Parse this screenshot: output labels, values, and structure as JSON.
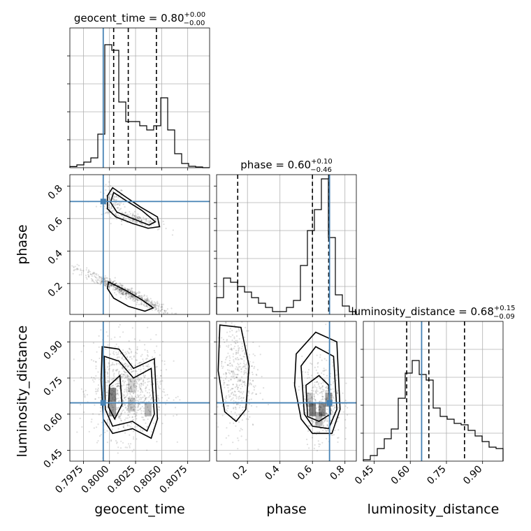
{
  "colors": {
    "truth": "#4682b4",
    "grid": "#b0b0b0",
    "line": "#000000"
  },
  "chart_data": {
    "type": "corner",
    "parameters": [
      "geocent_time",
      "phase",
      "luminosity_distance"
    ],
    "axis_labels": [
      "geocent_time",
      "phase",
      "luminosity_distance"
    ],
    "titles": [
      {
        "prefix": "geocent_time = 0.80",
        "sup": "+0.00",
        "sub": "−0.00"
      },
      {
        "prefix": "phase = 0.60",
        "sup": "+0.10",
        "sub": "−0.46"
      },
      {
        "prefix": "luminosity_distance = 0.68",
        "sup": "+0.15",
        "sub": "−0.09"
      }
    ],
    "ranges": [
      [
        0.7962,
        0.8096
      ],
      [
        0.01,
        0.87
      ],
      [
        0.405,
        0.985
      ]
    ],
    "ticks": [
      {
        "values": [
          0.7975,
          0.8,
          0.8025,
          0.805,
          0.8075
        ],
        "labels": [
          "0.7975",
          "0.8000",
          "0.8025",
          "0.8050",
          "0.8075"
        ]
      },
      {
        "values": [
          0.2,
          0.4,
          0.6,
          0.8
        ],
        "labels": [
          "0.2",
          "0.4",
          "0.6",
          "0.8"
        ]
      },
      {
        "values": [
          0.45,
          0.6,
          0.75,
          0.9
        ],
        "labels": [
          "0.45",
          "0.60",
          "0.75",
          "0.90"
        ]
      }
    ],
    "truths": [
      0.7994,
      0.705,
      0.647
    ],
    "quantiles": [
      [
        0.8004,
        0.8018,
        0.8045
      ],
      [
        0.14,
        0.6,
        0.7
      ],
      [
        0.585,
        0.677,
        0.825
      ]
    ],
    "histograms": [
      {
        "edges_start": 0.7962,
        "edges_end": 0.8096,
        "counts": [
          0.008,
          0.02,
          0.04,
          0.07,
          0.24,
          0.88,
          0.84,
          0.47,
          0.33,
          0.33,
          0.3,
          0.27,
          0.3,
          0.5,
          0.27,
          0.1,
          0.03,
          0.01,
          0.005,
          0.0
        ]
      },
      {
        "edges_start": 0.01,
        "edges_end": 0.87,
        "counts": [
          0.12,
          0.26,
          0.23,
          0.2,
          0.16,
          0.12,
          0.08,
          0.05,
          0.02,
          0.02,
          0.05,
          0.1,
          0.35,
          0.6,
          0.75,
          0.97,
          0.55,
          0.14,
          0.06,
          0.02
        ]
      },
      {
        "edges_start": 0.405,
        "edges_end": 0.985,
        "counts": [
          0.01,
          0.04,
          0.09,
          0.16,
          0.23,
          0.45,
          0.63,
          0.72,
          0.62,
          0.58,
          0.38,
          0.32,
          0.3,
          0.27,
          0.26,
          0.22,
          0.18,
          0.14,
          0.1,
          0.09
        ]
      }
    ],
    "grid": true,
    "scatter_clusters": {
      "geocent_time-phase": [
        {
          "cx": 0.8003,
          "cy": 0.7,
          "sx": 0.00055,
          "sy": 0.05,
          "n": 120
        },
        {
          "cx": 0.8025,
          "cy": 0.6,
          "sx": 0.0013,
          "sy": 0.03,
          "rho": -0.8,
          "n": 160
        },
        {
          "cx": 0.8015,
          "cy": 0.15,
          "sx": 0.0022,
          "sy": 0.07,
          "rho": -0.97,
          "n": 650
        }
      ],
      "geocent_time-luminosity_distance": [
        {
          "cx": 0.8017,
          "cy": 0.7,
          "sx": 0.0017,
          "sy": 0.1,
          "n": 900
        }
      ],
      "phase-luminosity_distance": [
        {
          "cx": 0.13,
          "cy": 0.76,
          "sx": 0.06,
          "sy": 0.12,
          "n": 420
        },
        {
          "cx": 0.66,
          "cy": 0.65,
          "sx": 0.06,
          "sy": 0.09,
          "n": 420
        }
      ]
    },
    "density_cells": {
      "geocent_time-luminosity_distance": [
        [
          0.8003,
          0.68,
          0.9
        ],
        [
          0.8003,
          0.62,
          0.7
        ],
        [
          0.8021,
          0.64,
          0.4
        ],
        [
          0.8037,
          0.62,
          0.5
        ],
        [
          0.8021,
          0.72,
          0.3
        ]
      ],
      "phase-luminosity_distance": [
        [
          0.6,
          0.62,
          0.9
        ],
        [
          0.66,
          0.62,
          0.8
        ],
        [
          0.7,
          0.66,
          0.7
        ],
        [
          0.64,
          0.58,
          0.5
        ],
        [
          0.58,
          0.66,
          0.4
        ]
      ]
    },
    "contour_levels": {
      "geocent_time-phase": [
        [
          [
            0.8003,
            0.79
          ],
          [
            0.8014,
            0.74
          ],
          [
            0.803,
            0.67
          ],
          [
            0.8046,
            0.61
          ],
          [
            0.8048,
            0.55
          ],
          [
            0.8037,
            0.54
          ],
          [
            0.8022,
            0.57
          ],
          [
            0.8006,
            0.61
          ],
          [
            0.7998,
            0.66
          ],
          [
            0.7998,
            0.74
          ]
        ],
        [
          [
            0.8004,
            0.76
          ],
          [
            0.8016,
            0.71
          ],
          [
            0.8031,
            0.65
          ],
          [
            0.8044,
            0.58
          ],
          [
            0.8038,
            0.56
          ],
          [
            0.8022,
            0.6
          ],
          [
            0.8007,
            0.64
          ],
          [
            0.8001,
            0.7
          ]
        ],
        [
          [
            0.7999,
            0.21
          ],
          [
            0.8015,
            0.16
          ],
          [
            0.8031,
            0.1
          ],
          [
            0.8042,
            0.05
          ],
          [
            0.8034,
            0.03
          ],
          [
            0.8018,
            0.06
          ],
          [
            0.8004,
            0.11
          ],
          [
            0.7998,
            0.17
          ]
        ]
      ],
      "geocent_time-luminosity_distance": [
        [
          [
            0.7993,
            0.88
          ],
          [
            0.8009,
            0.87
          ],
          [
            0.8023,
            0.79
          ],
          [
            0.8043,
            0.83
          ],
          [
            0.8046,
            0.58
          ],
          [
            0.804,
            0.5
          ],
          [
            0.8022,
            0.54
          ],
          [
            0.8003,
            0.52
          ],
          [
            0.7994,
            0.58
          ],
          [
            0.7992,
            0.74
          ]
        ],
        [
          [
            0.7995,
            0.84
          ],
          [
            0.8009,
            0.82
          ],
          [
            0.8023,
            0.75
          ],
          [
            0.804,
            0.79
          ],
          [
            0.8043,
            0.6
          ],
          [
            0.8036,
            0.53
          ],
          [
            0.8022,
            0.57
          ],
          [
            0.8003,
            0.55
          ],
          [
            0.7996,
            0.62
          ]
        ],
        [
          [
            0.8,
            0.72
          ],
          [
            0.801,
            0.76
          ],
          [
            0.8012,
            0.64
          ],
          [
            0.8005,
            0.58
          ],
          [
            0.7999,
            0.63
          ]
        ]
      ],
      "phase-luminosity_distance": [
        [
          [
            0.03,
            0.97
          ],
          [
            0.16,
            0.96
          ],
          [
            0.21,
            0.8
          ],
          [
            0.19,
            0.62
          ],
          [
            0.13,
            0.57
          ],
          [
            0.06,
            0.61
          ],
          [
            0.02,
            0.78
          ]
        ],
        [
          [
            0.5,
            0.85
          ],
          [
            0.62,
            0.94
          ],
          [
            0.75,
            0.9
          ],
          [
            0.77,
            0.62
          ],
          [
            0.72,
            0.52
          ],
          [
            0.6,
            0.52
          ],
          [
            0.53,
            0.58
          ],
          [
            0.49,
            0.72
          ]
        ],
        [
          [
            0.53,
            0.8
          ],
          [
            0.62,
            0.88
          ],
          [
            0.73,
            0.84
          ],
          [
            0.75,
            0.62
          ],
          [
            0.7,
            0.54
          ],
          [
            0.6,
            0.55
          ],
          [
            0.55,
            0.6
          ]
        ],
        [
          [
            0.56,
            0.72
          ],
          [
            0.64,
            0.76
          ],
          [
            0.7,
            0.72
          ],
          [
            0.71,
            0.6
          ],
          [
            0.64,
            0.57
          ],
          [
            0.57,
            0.59
          ]
        ]
      ]
    }
  }
}
